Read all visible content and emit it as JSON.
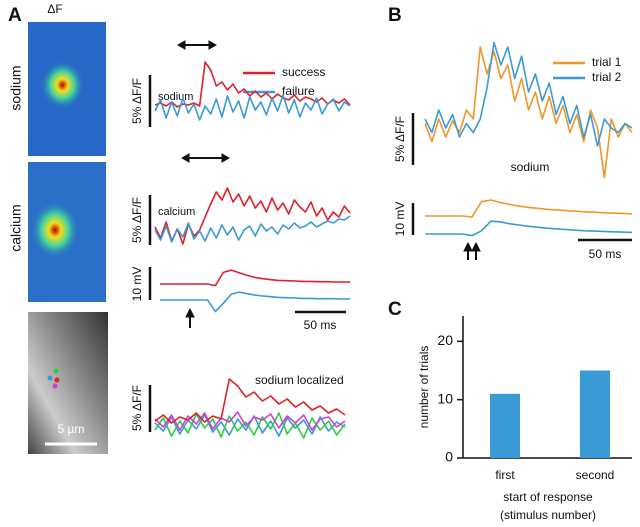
{
  "panel_labels": [
    "A",
    "B",
    "C"
  ],
  "panel_a": {
    "image_header": "ΔF",
    "row_labels": [
      "sodium",
      "calcium"
    ],
    "scale_bar_label": "5 µm",
    "sodium": {
      "label": "sodium",
      "scale_label": "5% ΔF/F",
      "series": [
        {
          "name": "success",
          "color": "#e0202a",
          "values": [
            0.3,
            0.5,
            0.2,
            0.6,
            0.1,
            0.4,
            0.3,
            0.5,
            0.2,
            4.6,
            3.8,
            2.2,
            2.6,
            1.8,
            2.4,
            1.5,
            1.9,
            1.2,
            1.7,
            1.1,
            1.5,
            0.9,
            1.4,
            1.0,
            0.8,
            1.3,
            0.7,
            1.1,
            0.9,
            0.6,
            1.0,
            0.4,
            0.8,
            0.5,
            0.9,
            0.3
          ]
        },
        {
          "name": "failure",
          "color": "#3a9ad6",
          "values": [
            -0.3,
            0.8,
            -1.0,
            0.6,
            -0.8,
            1.0,
            -0.5,
            0.4,
            -1.2,
            0.2,
            -0.6,
            0.9,
            -0.9,
            1.2,
            -0.4,
            0.7,
            -1.0,
            1.1,
            -0.2,
            0.6,
            -0.7,
            1.0,
            -0.3,
            1.3,
            -0.5,
            0.8,
            -0.9,
            0.5,
            -0.2,
            1.0,
            -0.6,
            0.4,
            0.9,
            -0.3,
            0.6,
            0.2
          ]
        }
      ]
    },
    "calcium": {
      "label": "calcium",
      "scale_label": "5% ΔF/F",
      "series": [
        {
          "color": "#e0202a",
          "values": [
            0.5,
            -0.6,
            1.0,
            -0.9,
            0.3,
            -1.2,
            0.8,
            -0.4,
            0.2,
            1.5,
            2.8,
            4.0,
            3.2,
            4.4,
            3.0,
            3.8,
            2.6,
            3.6,
            2.4,
            3.1,
            2.0,
            3.4,
            2.2,
            2.9,
            1.8,
            3.2,
            2.5,
            2.0,
            3.0,
            1.6,
            2.4,
            1.2,
            2.0,
            1.5,
            2.6,
            1.9
          ]
        },
        {
          "color": "#3a9ad6",
          "values": [
            0.2,
            -0.8,
            0.6,
            -1.0,
            0.3,
            -0.5,
            0.9,
            -0.7,
            0.1,
            -0.9,
            0.4,
            -0.6,
            0.7,
            -0.3,
            0.5,
            -0.8,
            0.2,
            0.6,
            -0.4,
            0.8,
            0.1,
            0.5,
            -0.2,
            0.7,
            0.3,
            0.9,
            0.4,
            0.6,
            1.0,
            0.5,
            0.8,
            1.1,
            0.9,
            1.3,
            1.2,
            1.6
          ]
        }
      ]
    },
    "voltage": {
      "scale_label": "10 mV",
      "time_scale_label": "50 ms",
      "series": [
        {
          "color": "#e0202a",
          "values": [
            0,
            0,
            0,
            0,
            0,
            0,
            0,
            -0.5,
            3.5,
            4.2,
            3.4,
            2.6,
            2.0,
            1.6,
            1.3,
            1.1,
            1.0,
            0.9,
            0.8,
            0.8,
            0.7,
            0.7,
            0.6,
            0.6,
            0.6
          ]
        },
        {
          "color": "#3a9ad6",
          "values": [
            0,
            0,
            0,
            0,
            0,
            0,
            0,
            -3.5,
            -1.0,
            1.8,
            2.4,
            1.9,
            1.5,
            1.2,
            1.0,
            0.8,
            0.7,
            0.6,
            0.5,
            0.5,
            0.4,
            0.4,
            0.4,
            0.3,
            0.3
          ]
        }
      ]
    },
    "localized": {
      "label": "sodium localized",
      "scale_label": "5% ΔF/F",
      "series": [
        {
          "color": "#3a9ad6",
          "values": [
            0.2,
            -0.6,
            0.8,
            -0.9,
            0.5,
            -0.4,
            1.0,
            -0.7,
            0.3,
            -1.0,
            0.6,
            -0.5,
            0.9,
            -0.8,
            0.4,
            -1.1,
            0.7,
            -0.3,
            0.5,
            -0.9,
            0.8,
            -0.6,
            0.3,
            -0.2
          ]
        },
        {
          "color": "#2ecc40",
          "values": [
            -0.5,
            0.7,
            -1.1,
            0.4,
            -0.8,
            1.1,
            -0.3,
            0.6,
            -1.2,
            0.9,
            -0.6,
            0.3,
            -1.0,
            0.8,
            -0.4,
            1.2,
            -0.9,
            0.2,
            -1.3,
            0.7,
            -0.5,
            0.4,
            -1.0,
            0.1
          ]
        },
        {
          "color": "#d040d8",
          "values": [
            0.6,
            -0.2,
            1.0,
            -0.5,
            0.9,
            0.1,
            1.2,
            -0.4,
            0.7,
            0.3,
            1.3,
            -0.1,
            0.8,
            0.5,
            1.1,
            -0.3,
            0.9,
            0.2,
            1.0,
            -0.5,
            0.6,
            0.8,
            -0.2,
            0.4
          ]
        },
        {
          "color": "#e0202a",
          "values": [
            0.4,
            1.0,
            0.2,
            0.8,
            0.5,
            1.2,
            0.3,
            0.9,
            0.6,
            4.6,
            3.9,
            2.8,
            3.3,
            2.4,
            2.9,
            2.1,
            2.6,
            1.8,
            2.3,
            1.5,
            1.9,
            1.2,
            1.6,
            1.0
          ]
        }
      ]
    }
  },
  "panel_b": {
    "label": "sodium",
    "scale_label": "5% ΔF/F",
    "voltage_scale_label": "10 mV",
    "time_scale_label": "50 ms",
    "series": [
      {
        "name": "trial 1",
        "color": "#f0962a",
        "values": [
          0.5,
          -1.5,
          1.0,
          -1.0,
          0.8,
          -0.5,
          2.0,
          1.0,
          9.0,
          6.0,
          8.5,
          5.5,
          7.0,
          3.0,
          5.5,
          2.0,
          4.0,
          1.0,
          3.5,
          0.5,
          2.5,
          -0.5,
          1.5,
          -1.5,
          2.0,
          0,
          -5.5,
          1.0,
          -1.0,
          0.5,
          -0.5
        ]
      },
      {
        "name": "trial 2",
        "color": "#3a9ad6",
        "values": [
          1.0,
          -0.5,
          2.0,
          0.0,
          1.5,
          -1.0,
          0.5,
          -0.5,
          1.0,
          4.5,
          9.5,
          7.0,
          9.0,
          5.5,
          8.0,
          4.0,
          6.0,
          3.0,
          5.0,
          1.5,
          3.5,
          0.5,
          2.5,
          -1.0,
          1.5,
          -2.0,
          1.0,
          0.0,
          -0.5,
          0.5,
          0.0
        ]
      }
    ],
    "voltage_series": [
      {
        "color": "#f0962a",
        "values": [
          0,
          0,
          0,
          0,
          0,
          -0.3,
          4.5,
          5.0,
          4.2,
          3.6,
          3.1,
          2.7,
          2.4,
          2.1,
          1.9,
          1.7,
          1.5,
          1.3,
          1.2,
          1.0,
          0.9,
          0.8,
          0.7
        ]
      },
      {
        "color": "#3a9ad6",
        "values": [
          0,
          0,
          0,
          0,
          0,
          -0.5,
          1.0,
          4.0,
          3.8,
          3.2,
          2.8,
          2.4,
          2.1,
          1.8,
          1.6,
          1.4,
          1.2,
          1.0,
          0.9,
          0.8,
          0.7,
          0.6,
          0.5
        ]
      }
    ]
  },
  "chart_data": {
    "type": "bar",
    "y_label": "number of trials",
    "x_label": [
      "start of response",
      "(stimulus number)"
    ],
    "categories": [
      "first",
      "second"
    ],
    "values": [
      11,
      15
    ],
    "color": "#3a9ad6",
    "ylim": [
      0,
      24
    ],
    "yticks": [
      0,
      10,
      20
    ]
  }
}
